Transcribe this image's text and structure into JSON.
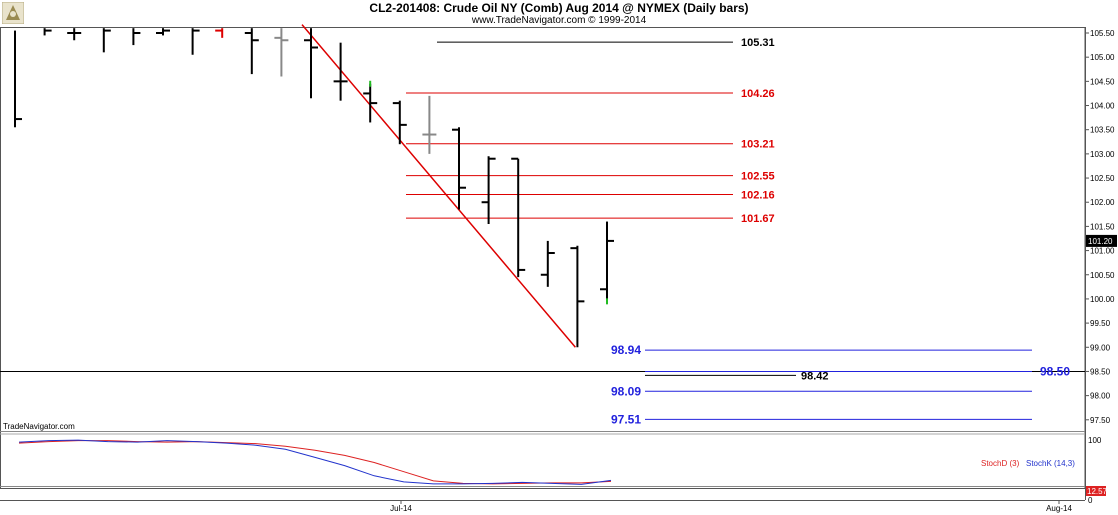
{
  "header": {
    "title": "CL2-201408:  Crude Oil NY (Comb) Aug 2014 @ NYMEX  (Daily bars)",
    "subtitle": "www.TradeNavigator.com © 1999-2014",
    "logo_icon": "trade-navigator-logo-icon"
  },
  "price_panel": {
    "last_price_label": "101.20",
    "axis_ticks": [
      "105.50",
      "105.00",
      "104.50",
      "104.00",
      "103.50",
      "103.00",
      "102.50",
      "102.00",
      "101.50",
      "101.00",
      "100.50",
      "100.00",
      "99.50",
      "99.00",
      "98.50",
      "98.00",
      "97.50"
    ]
  },
  "lower_panel": {
    "watermark": "TradeNavigator.com",
    "legend": [
      {
        "label": "StochD (3)",
        "color": "#dd2222"
      },
      {
        "label": "StochK (14,3)",
        "color": "#2233cc"
      }
    ],
    "axis_ticks": [
      "100",
      "0"
    ],
    "value_label": "12.57"
  },
  "x_axis": {
    "ticks": [
      "Jul-14",
      "Aug-14"
    ]
  },
  "chart_data": [
    {
      "type": "ohlc",
      "title": "CL2-201408:  Crude Oil NY (Comb) Aug 2014 @ NYMEX  (Daily bars)",
      "ylim": [
        97.3,
        105.65
      ],
      "bars": [
        {
          "o": null,
          "h": 105.55,
          "l": 103.55,
          "c": 103.72,
          "color": "#000000"
        },
        {
          "o": null,
          "h": 105.6,
          "l": 105.45,
          "c": 105.55,
          "color": "#000000"
        },
        {
          "o": 105.5,
          "h": 105.6,
          "l": 105.35,
          "c": 105.5,
          "color": "#000000"
        },
        {
          "o": null,
          "h": 105.6,
          "l": 105.1,
          "c": 105.55,
          "color": "#000000"
        },
        {
          "o": null,
          "h": 105.6,
          "l": 105.25,
          "c": 105.5,
          "color": "#000000"
        },
        {
          "o": 105.5,
          "h": 105.6,
          "l": 105.45,
          "c": 105.55,
          "color": "#000000"
        },
        {
          "o": null,
          "h": 105.6,
          "l": 105.05,
          "c": 105.55,
          "color": "#000000"
        },
        {
          "o": 105.55,
          "h": 105.6,
          "l": 105.4,
          "c": null,
          "color": "#dd0000"
        },
        {
          "o": 105.5,
          "h": 105.6,
          "l": 104.65,
          "c": 105.35,
          "color": "#000000"
        },
        {
          "o": 105.4,
          "h": 105.6,
          "l": 104.6,
          "c": 105.35,
          "color": "#888888"
        },
        {
          "o": 105.35,
          "h": 105.6,
          "l": 104.15,
          "c": 105.2,
          "color": "#000000"
        },
        {
          "o": 104.5,
          "h": 105.3,
          "l": 104.1,
          "c": 104.5,
          "color": "#000000"
        },
        {
          "o": 104.25,
          "h": 104.45,
          "l": 103.65,
          "c": 104.05,
          "color": "#000000",
          "tip": "#22bb22"
        },
        {
          "o": 104.05,
          "h": 104.1,
          "l": 103.2,
          "c": 103.6,
          "color": "#000000"
        },
        {
          "o": 103.4,
          "h": 104.2,
          "l": 103.0,
          "c": 103.4,
          "color": "#888888"
        },
        {
          "o": 103.5,
          "h": 103.55,
          "l": 101.85,
          "c": 102.3,
          "color": "#000000"
        },
        {
          "o": 102.0,
          "h": 102.95,
          "l": 101.55,
          "c": 102.9,
          "color": "#000000"
        },
        {
          "o": 102.9,
          "h": 102.9,
          "l": 100.45,
          "c": 100.6,
          "color": "#000000"
        },
        {
          "o": 100.5,
          "h": 101.2,
          "l": 100.25,
          "c": 100.95,
          "color": "#000000"
        },
        {
          "o": 101.05,
          "h": 101.1,
          "l": 99.0,
          "c": 99.95,
          "color": "#000000"
        },
        {
          "o": 100.2,
          "h": 101.6,
          "l": 99.95,
          "c": 101.2,
          "color": "#000000",
          "tip": "#22bb22"
        }
      ],
      "trendline": {
        "from": [
          10,
          105.55
        ],
        "to": [
          19,
          99.0
        ],
        "color": "#dd0000"
      },
      "levels": [
        {
          "value": 105.31,
          "label": "105.31",
          "color": "#000000"
        },
        {
          "value": 104.26,
          "label": "104.26",
          "color": "#dd0000"
        },
        {
          "value": 103.21,
          "label": "103.21",
          "color": "#dd0000"
        },
        {
          "value": 102.55,
          "label": "102.55",
          "color": "#dd0000"
        },
        {
          "value": 102.16,
          "label": "102.16",
          "color": "#dd0000"
        },
        {
          "value": 101.67,
          "label": "101.67",
          "color": "#dd0000"
        },
        {
          "value": 98.94,
          "label": "98.94",
          "color": "#2222dd"
        },
        {
          "value": 98.5,
          "label": "98.50",
          "color": "#2222dd"
        },
        {
          "value": 98.42,
          "label": "98.42",
          "color": "#000000"
        },
        {
          "value": 98.09,
          "label": "98.09",
          "color": "#2222dd"
        },
        {
          "value": 97.51,
          "label": "97.51",
          "color": "#2222dd"
        }
      ]
    },
    {
      "type": "line",
      "ylim": [
        0,
        100
      ],
      "series": [
        {
          "name": "StochD (3)",
          "color": "#dd2222",
          "values": [
            86,
            89,
            91,
            91,
            89,
            88,
            89,
            87,
            85,
            80,
            72,
            62,
            48,
            30,
            12,
            7,
            6,
            7,
            8,
            8,
            11
          ]
        },
        {
          "name": "StochK (14,3)",
          "color": "#2233cc",
          "values": [
            88,
            91,
            92,
            89,
            88,
            91,
            89,
            86,
            82,
            74,
            58,
            42,
            22,
            10,
            6,
            6,
            7,
            9,
            7,
            5,
            13
          ]
        }
      ]
    }
  ]
}
